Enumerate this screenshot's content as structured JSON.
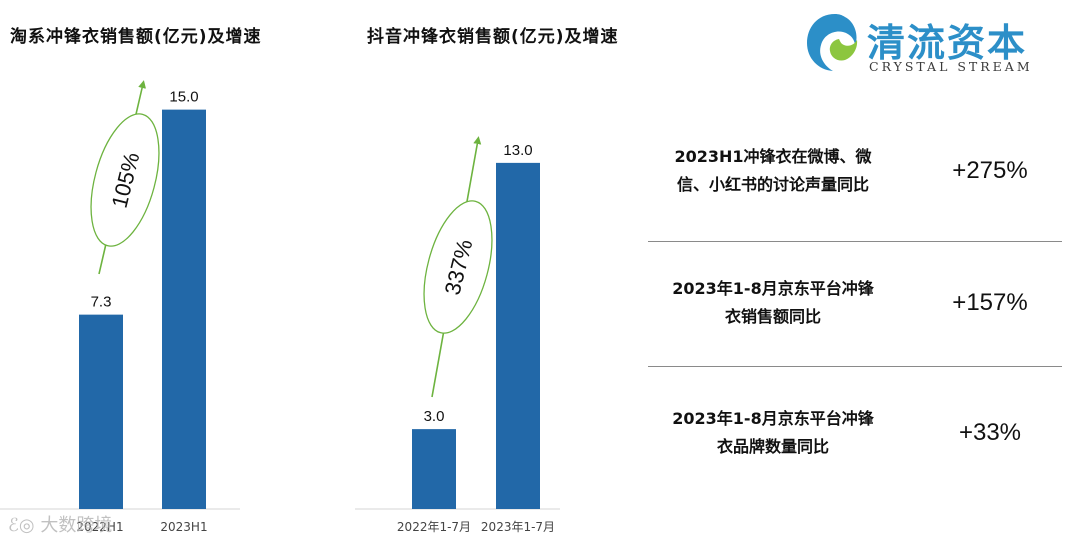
{
  "chart_data": [
    {
      "type": "bar",
      "title": "淘系冲锋衣销售额(亿元)及增速",
      "categories": [
        "2022H1",
        "2023H1"
      ],
      "values": [
        7.3,
        15.0
      ],
      "value_labels": [
        "7.3",
        "15.0"
      ],
      "growth_label": "105%",
      "color": "#2268a8",
      "ylim": [
        0,
        16
      ]
    },
    {
      "type": "bar",
      "title": "抖音冲锋衣销售额(亿元)及增速",
      "categories": [
        "2022年1-7月",
        "2023年1-7月"
      ],
      "values": [
        3.0,
        13.0
      ],
      "value_labels": [
        "3.0",
        "13.0"
      ],
      "growth_label": "337%",
      "color": "#2268a8",
      "ylim": [
        0,
        16
      ]
    }
  ],
  "logo": {
    "name_cn": "清流资本",
    "name_en": "CRYSTAL STREAM",
    "color": "#2c8fc8"
  },
  "stats": [
    {
      "desc_line1": "2023H1冲锋衣在微博、微",
      "desc_line2": "信、小红书的讨论声量同比",
      "value": "+275%"
    },
    {
      "desc_line1": "2023年1-8月京东平台冲锋",
      "desc_line2": "衣销售额同比",
      "value": "+157%"
    },
    {
      "desc_line1": "2023年1-8月京东平台冲锋",
      "desc_line2": "衣品牌数量同比",
      "value": "+33%"
    }
  ],
  "watermark": "大数跨境",
  "growth_color": "#6db33f"
}
